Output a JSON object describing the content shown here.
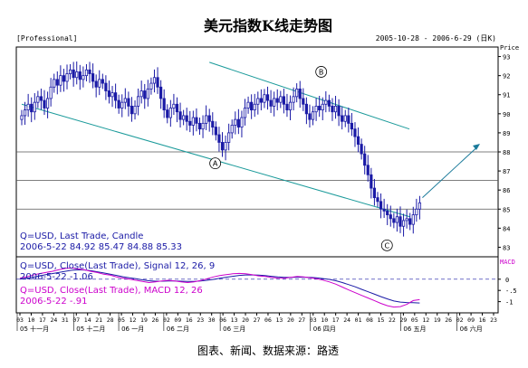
{
  "title": "美元指数K线走势图",
  "professional_label": "[Professional]",
  "date_range": "2005-10-28 - 2006-6-29 (日K)",
  "price_axis_label": "Price",
  "macd_axis_label": "MACD",
  "caption": "图表、新闻、数据来源：路透",
  "colors": {
    "candle": "#1a1aa6",
    "trend_lines": "#1a9a9a",
    "arrow": "#1a7a9a",
    "signal_line": "#1a1aa6",
    "macd_line": "#cc00cc",
    "info_text": "#1a1aa6",
    "macd_text": "#cc00cc"
  },
  "info": {
    "line1": "Q=USD, Last Trade, Candle",
    "line2": "2006-5-22 84.92 85.47 84.88 85.33"
  },
  "macd_info": {
    "line1": "Q=USD, Close(Last Trade), Signal 12, 26, 9",
    "line2": "2006-5-22 -1.06",
    "line3": "Q=USD, Close(Last Trade), MACD 12, 26",
    "line4": "2006-5-22 -.91"
  },
  "annotations": {
    "a": "A",
    "b": "B",
    "c": "C"
  },
  "chart_data": {
    "type": "candlestick",
    "price_range": [
      82.5,
      93.5
    ],
    "price_ticks": [
      "93",
      "92",
      "91",
      "90",
      "89",
      "88",
      "87",
      "86",
      "85",
      "84",
      "83"
    ],
    "horizontal_levels": [
      88,
      86.5,
      85
    ],
    "macd_range": [
      -1.5,
      1
    ],
    "macd_ticks": [
      "0",
      "-.5",
      "-1"
    ],
    "day_ticks": [
      "03",
      "10",
      "17",
      "24",
      "31",
      "07",
      "14",
      "21",
      "28",
      "05",
      "12",
      "19",
      "26",
      "02",
      "09",
      "16",
      "23",
      "30",
      "06",
      "13",
      "20",
      "27",
      "06",
      "13",
      "20",
      "27",
      "03",
      "10",
      "17",
      "24",
      "01",
      "08",
      "15",
      "22",
      "29",
      "05",
      "12",
      "19",
      "26",
      "02",
      "09",
      "16",
      "23"
    ],
    "month_labels": [
      "05 十一月",
      "05 十二月",
      "06 一月",
      "06 二月",
      "06 三月",
      "06 四月",
      "06 五月",
      "06 六月"
    ],
    "closes": [
      89.9,
      90.2,
      90.5,
      90.1,
      90.6,
      90.9,
      90.7,
      90.3,
      90.8,
      91.4,
      91.8,
      91.5,
      92.0,
      91.7,
      92.1,
      92.3,
      91.9,
      92.2,
      91.8,
      92.0,
      92.3,
      92.1,
      91.7,
      91.4,
      91.8,
      91.6,
      91.2,
      90.9,
      91.1,
      90.7,
      90.3,
      90.6,
      90.8,
      90.4,
      90.0,
      90.4,
      90.9,
      91.2,
      90.8,
      91.3,
      91.6,
      91.9,
      91.4,
      90.8,
      90.2,
      89.8,
      90.3,
      90.5,
      90.1,
      89.7,
      89.9,
      89.6,
      89.4,
      89.8,
      89.5,
      89.2,
      89.5,
      89.9,
      89.6,
      89.3,
      88.9,
      88.5,
      88.1,
      88.5,
      89.0,
      89.4,
      89.7,
      89.3,
      89.8,
      90.3,
      90.6,
      90.2,
      90.5,
      90.8,
      90.6,
      91.0,
      90.7,
      90.4,
      90.8,
      90.6,
      90.9,
      90.5,
      90.2,
      90.6,
      90.9,
      91.3,
      90.8,
      90.5,
      90.0,
      89.7,
      90.1,
      90.4,
      90.2,
      90.5,
      90.7,
      90.4,
      90.1,
      90.4,
      89.9,
      89.6,
      89.9,
      89.5,
      89.2,
      88.8,
      88.4,
      87.9,
      87.3,
      86.8,
      86.1,
      85.6,
      85.4,
      85.0,
      84.9,
      84.7,
      84.5,
      84.3,
      84.6,
      84.1,
      84.4,
      84.5,
      84.2,
      84.7,
      85.0,
      85.33
    ],
    "macd": [
      0.05,
      0.1,
      0.18,
      0.25,
      0.3,
      0.35,
      0.42,
      0.48,
      0.5,
      0.46,
      0.42,
      0.35,
      0.3,
      0.22,
      0.18,
      0.1,
      0.05,
      0.0,
      -0.05,
      -0.1,
      -0.15,
      -0.12,
      -0.08,
      -0.05,
      -0.08,
      -0.12,
      -0.15,
      -0.12,
      -0.06,
      0.02,
      0.1,
      0.16,
      0.2,
      0.24,
      0.26,
      0.24,
      0.2,
      0.15,
      0.12,
      0.08,
      0.05,
      0.04,
      0.08,
      0.12,
      0.1,
      0.06,
      0.02,
      -0.04,
      -0.12,
      -0.22,
      -0.35,
      -0.48,
      -0.6,
      -0.72,
      -0.84,
      -0.96,
      -1.08,
      -1.18,
      -1.24,
      -1.22,
      -1.12,
      -0.95,
      -0.91
    ],
    "signal": [
      0.0,
      0.04,
      0.08,
      0.14,
      0.2,
      0.25,
      0.3,
      0.35,
      0.4,
      0.42,
      0.41,
      0.38,
      0.33,
      0.28,
      0.22,
      0.17,
      0.11,
      0.06,
      0.02,
      -0.03,
      -0.07,
      -0.09,
      -0.09,
      -0.08,
      -0.08,
      -0.09,
      -0.1,
      -0.1,
      -0.08,
      -0.05,
      -0.01,
      0.04,
      0.09,
      0.13,
      0.17,
      0.19,
      0.19,
      0.18,
      0.16,
      0.13,
      0.1,
      0.08,
      0.08,
      0.09,
      0.09,
      0.08,
      0.06,
      0.03,
      -0.01,
      -0.07,
      -0.15,
      -0.24,
      -0.34,
      -0.45,
      -0.56,
      -0.67,
      -0.78,
      -0.88,
      -0.97,
      -1.02,
      -1.04,
      -1.05,
      -1.06
    ]
  }
}
